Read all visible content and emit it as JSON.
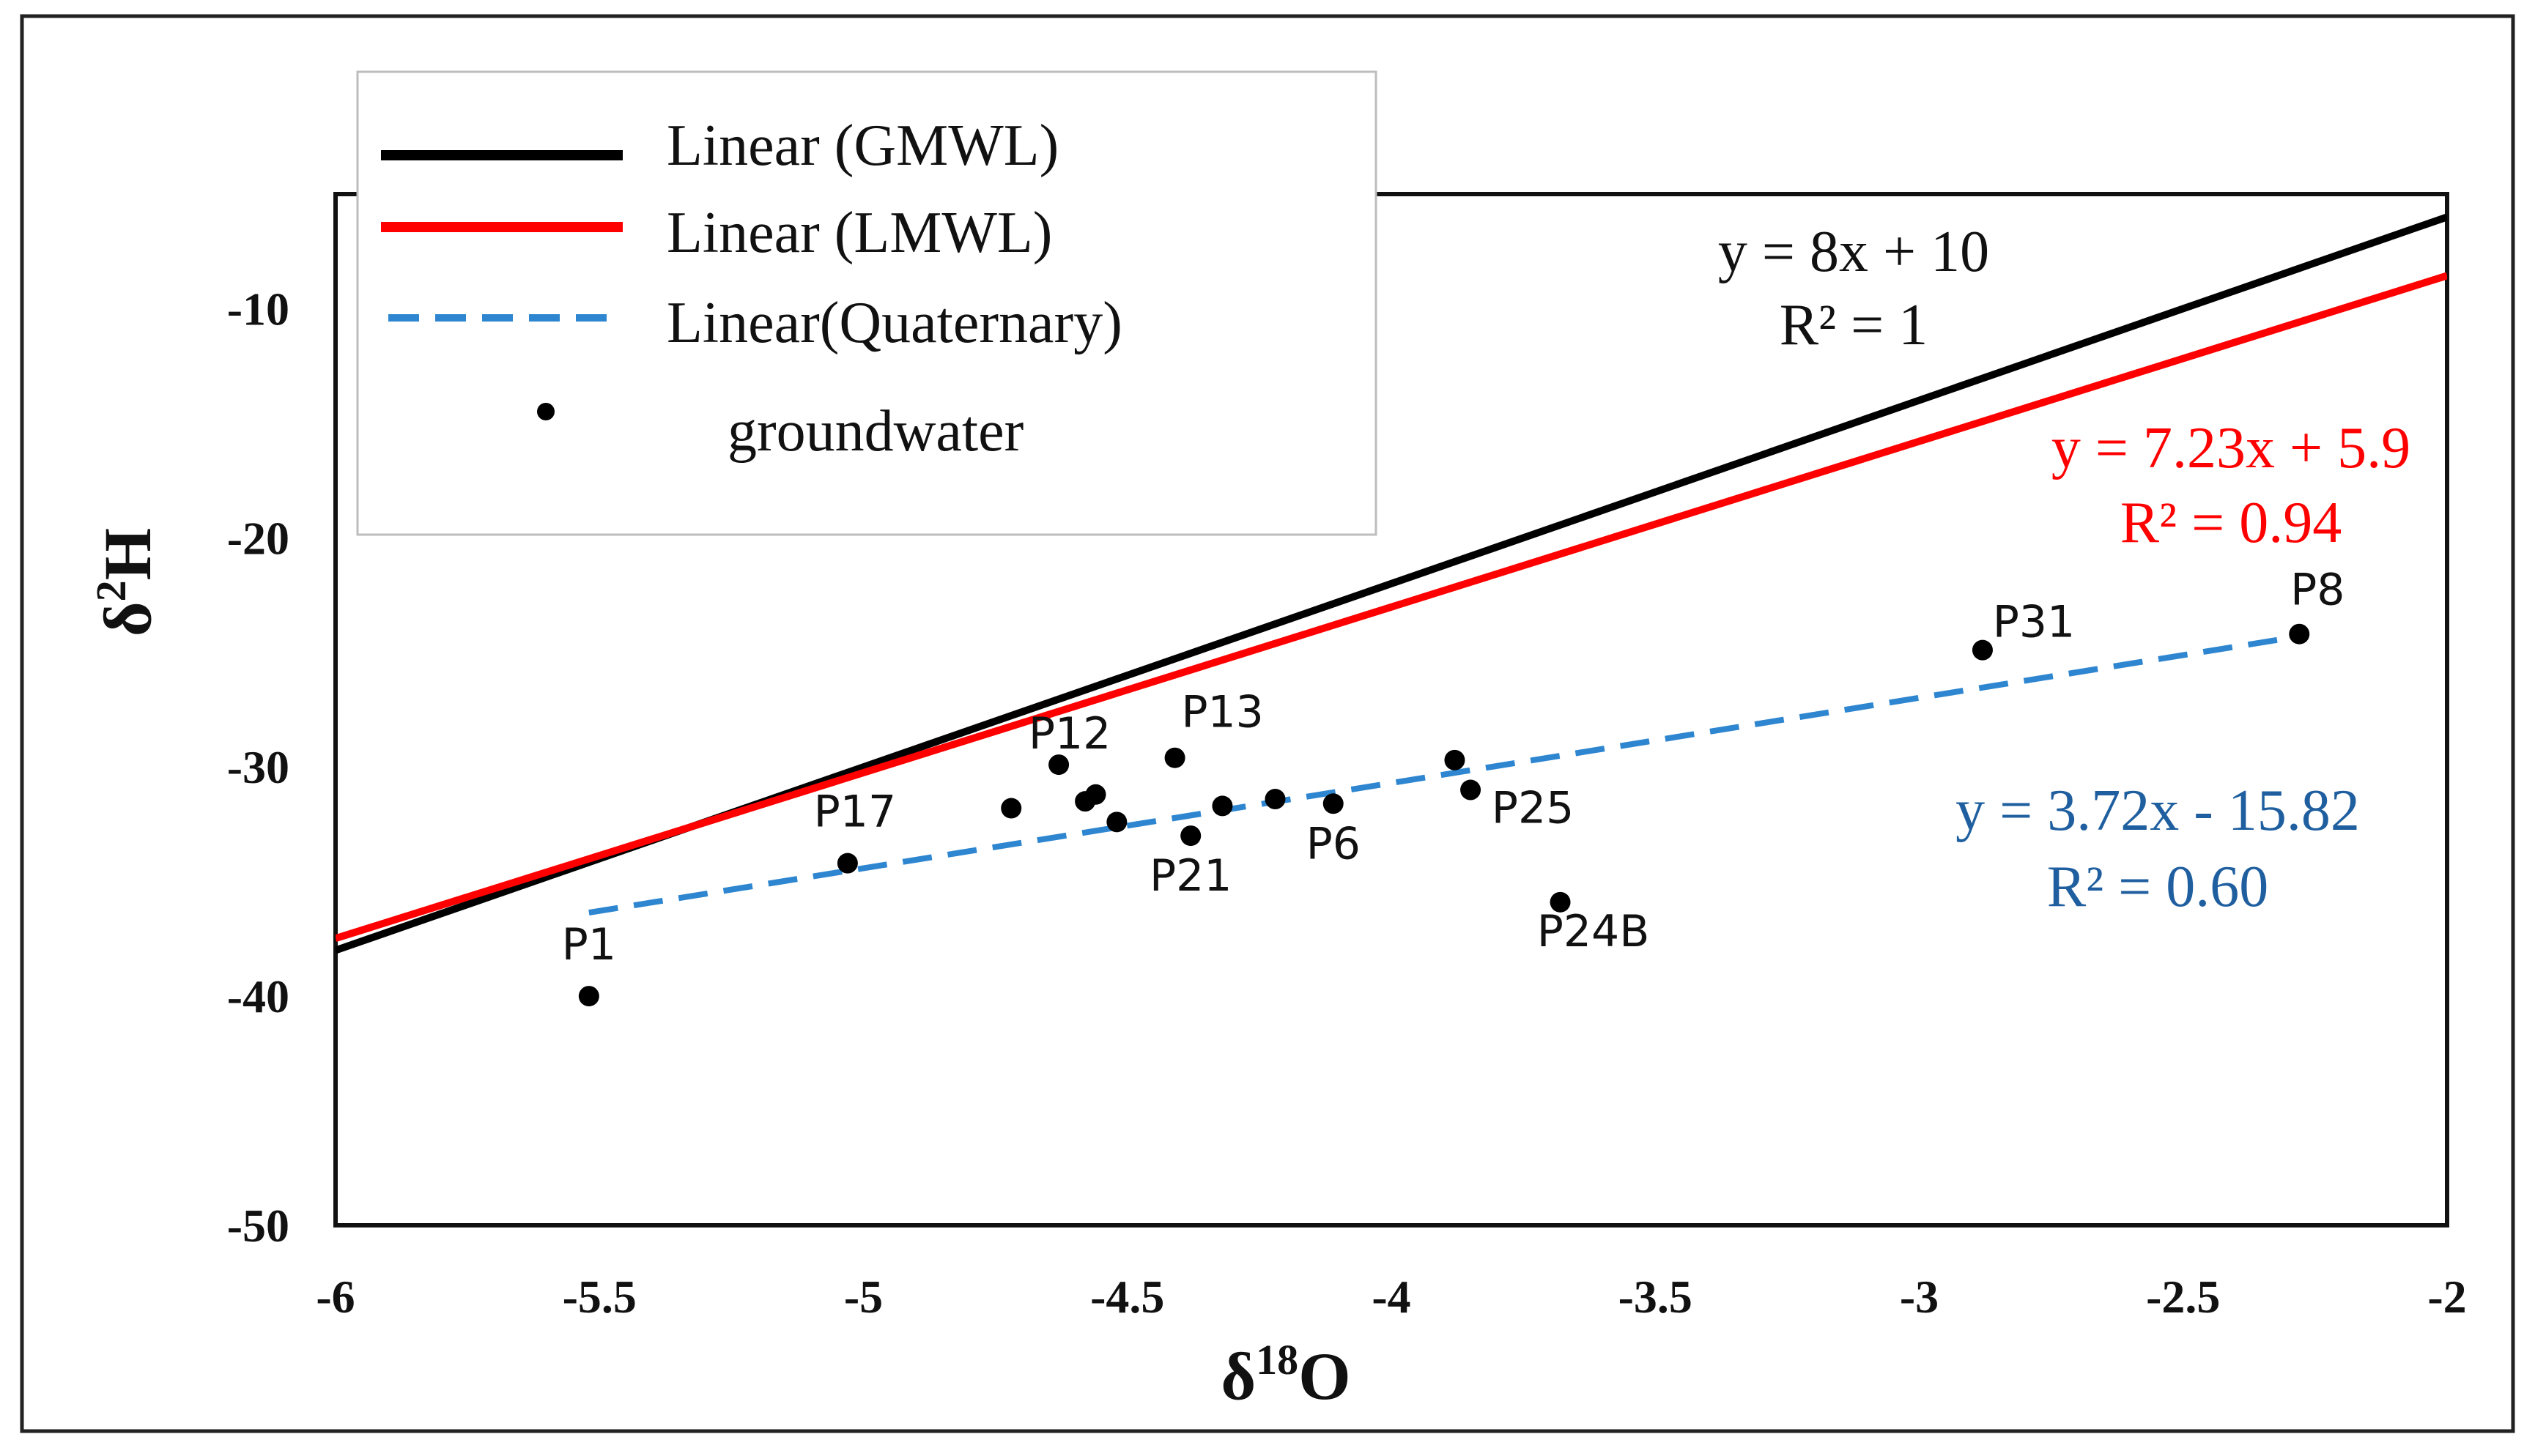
{
  "chart_data": {
    "type": "scatter",
    "title": "",
    "xlabel": "δ18O",
    "ylabel": "δ2H",
    "xlabel_parts": {
      "base": "δ",
      "sup": "18",
      "tail": "O"
    },
    "ylabel_parts": {
      "base": "δ",
      "sup": "2",
      "tail": "H"
    },
    "xlim": [
      -6,
      -2
    ],
    "ylim": [
      -50,
      -5
    ],
    "xticks": [
      -6,
      -5.5,
      -5,
      -4.5,
      -4,
      -3.5,
      -3,
      -2.5,
      -2
    ],
    "yticks": [
      -50,
      -40,
      -30,
      -20,
      -10
    ],
    "grid": false,
    "legend_position": "top-left",
    "legend": [
      {
        "label": "Linear (GMWL)",
        "kind": "line",
        "color": "#000000",
        "dash": "solid"
      },
      {
        "label": "Linear (LMWL)",
        "kind": "line",
        "color": "#ff0000",
        "dash": "solid"
      },
      {
        "label": "Linear(Quaternary)",
        "kind": "line",
        "color": "#2e86d0",
        "dash": "dashed"
      },
      {
        "label": "groundwater",
        "kind": "marker",
        "color": "#000000"
      }
    ],
    "lines": [
      {
        "name": "GMWL",
        "slope": 8,
        "intercept": 10,
        "x_range": [
          -6,
          -2
        ],
        "color": "#000000",
        "dash": "solid",
        "equation": "y = 8x + 10",
        "r2": "R² = 1"
      },
      {
        "name": "LMWL",
        "slope": 7.23,
        "intercept": 5.9,
        "x_range": [
          -6,
          -2
        ],
        "color": "#ff0000",
        "dash": "solid",
        "equation": "y = 7.23x + 5.9",
        "r2": "R² = 0.94",
        "eq_color": "#ff0000"
      },
      {
        "name": "Quaternary",
        "slope": 3.72,
        "intercept": -15.82,
        "x_range": [
          -5.52,
          -2.28
        ],
        "color": "#2e86d0",
        "dash": "dashed",
        "equation": "y = 3.72x - 15.82",
        "r2": "R² = 0.60",
        "eq_color": "#1f5f9f"
      }
    ],
    "series": [
      {
        "name": "groundwater",
        "points": [
          {
            "x": -5.52,
            "y": -40.0,
            "label": "P1"
          },
          {
            "x": -5.03,
            "y": -34.2,
            "label": "P17"
          },
          {
            "x": -4.72,
            "y": -31.8,
            "label": ""
          },
          {
            "x": -4.63,
            "y": -29.9,
            "label": "P12"
          },
          {
            "x": -4.58,
            "y": -31.5,
            "label": ""
          },
          {
            "x": -4.56,
            "y": -31.2,
            "label": ""
          },
          {
            "x": -4.52,
            "y": -32.4,
            "label": ""
          },
          {
            "x": -4.41,
            "y": -29.6,
            "label": "P13"
          },
          {
            "x": -4.38,
            "y": -33.0,
            "label": "P21"
          },
          {
            "x": -4.32,
            "y": -31.7,
            "label": ""
          },
          {
            "x": -4.22,
            "y": -31.4,
            "label": ""
          },
          {
            "x": -4.11,
            "y": -31.6,
            "label": "P6"
          },
          {
            "x": -3.88,
            "y": -29.7,
            "label": ""
          },
          {
            "x": -3.85,
            "y": -31.0,
            "label": "P25"
          },
          {
            "x": -3.68,
            "y": -35.9,
            "label": "P24B"
          },
          {
            "x": -2.88,
            "y": -24.9,
            "label": "P31"
          },
          {
            "x": -2.28,
            "y": -24.2,
            "label": "P8"
          }
        ]
      }
    ]
  }
}
